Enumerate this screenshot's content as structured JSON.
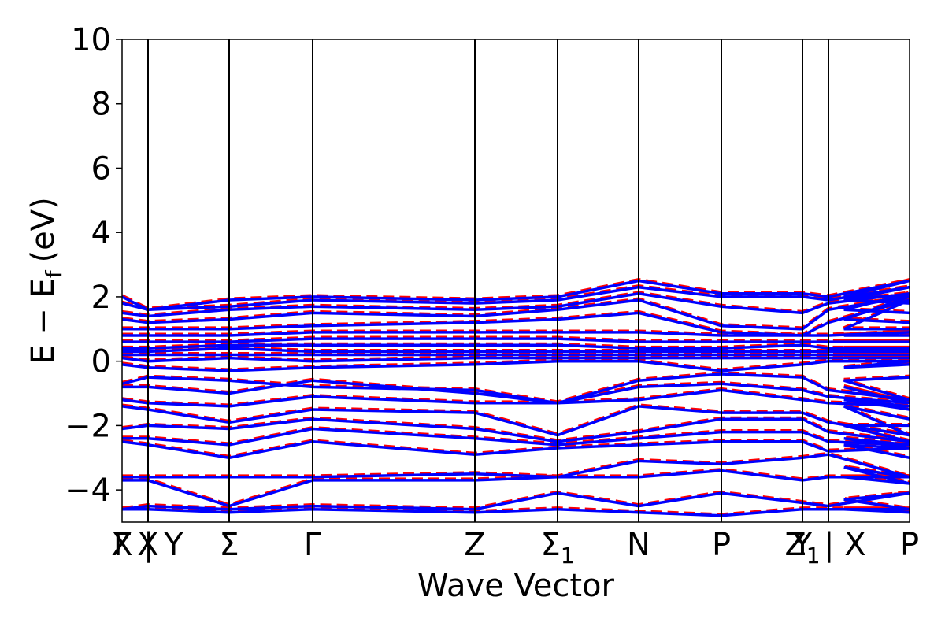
{
  "chart_data": {
    "type": "line",
    "xlabel": "Wave Vector",
    "ylabel": "E − E",
    "ylabel_sub": "f",
    "ylabel_unit": "(eV)",
    "ylim": [
      -5,
      10
    ],
    "yticks": [
      -4,
      -2,
      0,
      2,
      4,
      6,
      8,
      10
    ],
    "yticklabels": [
      "−4",
      "−2",
      "0",
      "2",
      "4",
      "6",
      "8",
      "10"
    ],
    "xlim": [
      0,
      1
    ],
    "grid": false,
    "legend": "none",
    "colors": {
      "series_a": "#ff0000",
      "series_b": "#0000ff",
      "axes": "#000000"
    },
    "series": [
      {
        "style": "dashed",
        "color": "#ff0000"
      },
      {
        "style": "solid",
        "color": "#0000ff"
      }
    ],
    "kpoints": [
      {
        "x": 0.0,
        "label": "Γ",
        "sub": ""
      },
      {
        "x": 0.0,
        "label": "X",
        "sub": ""
      },
      {
        "x": 0.033,
        "label": "X",
        "sub": ""
      },
      {
        "x": 0.033,
        "label": "| Y",
        "sub": ""
      },
      {
        "x": 0.136,
        "label": "Σ",
        "sub": ""
      },
      {
        "x": 0.242,
        "label": "Γ",
        "sub": ""
      },
      {
        "x": 0.448,
        "label": "Z",
        "sub": ""
      },
      {
        "x": 0.553,
        "label": "Σ",
        "sub": "1"
      },
      {
        "x": 0.656,
        "label": "N",
        "sub": ""
      },
      {
        "x": 0.761,
        "label": "P",
        "sub": ""
      },
      {
        "x": 0.864,
        "label": "Y",
        "sub": ""
      },
      {
        "x": 0.864,
        "label": "Z",
        "sub": "1"
      },
      {
        "x": 0.897,
        "label": "| X",
        "sub": ""
      },
      {
        "x": 1.0,
        "label": "P",
        "sub": ""
      }
    ],
    "vlines": [
      0.033,
      0.136,
      0.242,
      0.448,
      0.553,
      0.656,
      0.761,
      0.864,
      0.897
    ],
    "bands": [
      {
        "y": [
          2.0,
          1.6,
          1.9,
          2.0,
          1.9,
          2.0,
          2.5,
          2.1,
          2.1,
          2.0,
          2.5,
          2.0,
          2.0
        ]
      },
      {
        "y": [
          1.8,
          1.6,
          1.7,
          1.9,
          1.8,
          1.9,
          2.3,
          2.0,
          2.0,
          1.9,
          2.3,
          1.9,
          1.8
        ]
      },
      {
        "y": [
          1.5,
          1.4,
          1.6,
          1.7,
          1.6,
          1.7,
          2.1,
          1.7,
          1.5,
          1.8,
          2.1,
          1.6,
          1.5
        ]
      },
      {
        "y": [
          1.3,
          1.2,
          1.3,
          1.5,
          1.4,
          1.6,
          1.9,
          1.1,
          1.0,
          1.6,
          2.0,
          1.3,
          1.2
        ]
      },
      {
        "y": [
          1.0,
          1.0,
          1.0,
          1.1,
          1.2,
          1.3,
          1.5,
          0.9,
          0.8,
          1.2,
          1.9,
          1.0,
          1.0
        ]
      },
      {
        "y": [
          0.8,
          0.8,
          0.8,
          0.9,
          0.9,
          0.9,
          0.9,
          0.8,
          0.8,
          0.8,
          0.9,
          0.8,
          0.8
        ]
      },
      {
        "y": [
          0.6,
          0.6,
          0.6,
          0.7,
          0.7,
          0.7,
          0.6,
          0.6,
          0.6,
          0.6,
          0.6,
          0.6,
          0.6
        ]
      },
      {
        "y": [
          0.4,
          0.4,
          0.5,
          0.5,
          0.5,
          0.5,
          0.4,
          0.4,
          0.5,
          0.4,
          0.4,
          0.4,
          0.4
        ]
      },
      {
        "y": [
          0.3,
          0.3,
          0.4,
          0.3,
          0.3,
          0.3,
          0.3,
          0.3,
          0.3,
          0.3,
          0.3,
          0.3,
          0.3
        ]
      },
      {
        "y": [
          0.2,
          0.2,
          0.2,
          0.2,
          0.2,
          0.2,
          0.2,
          0.2,
          0.2,
          0.2,
          0.2,
          0.2,
          0.2
        ]
      },
      {
        "y": [
          0.1,
          0.0,
          0.1,
          0.0,
          0.1,
          0.1,
          0.1,
          0.1,
          0.1,
          0.1,
          0.1,
          0.1,
          0.1
        ]
      },
      {
        "y": [
          -0.1,
          -0.2,
          -0.3,
          -0.2,
          -0.1,
          0.0,
          0.0,
          -0.3,
          -0.1,
          0.0,
          0.0,
          -0.2,
          -0.1
        ]
      },
      {
        "y": [
          -0.7,
          -0.5,
          -0.6,
          -0.8,
          -0.9,
          -1.3,
          -0.6,
          -0.4,
          -0.5,
          -0.9,
          -1.2,
          -0.6,
          -0.5
        ]
      },
      {
        "y": [
          -0.8,
          -0.8,
          -1.0,
          -0.6,
          -1.0,
          -1.3,
          -0.8,
          -0.7,
          -0.9,
          -1.1,
          -1.3,
          -0.8,
          -1.3
        ]
      },
      {
        "y": [
          -1.2,
          -1.3,
          -1.4,
          -1.1,
          -1.3,
          -1.3,
          -1.2,
          -0.9,
          -1.2,
          -1.3,
          -1.4,
          -1.2,
          -1.5
        ]
      },
      {
        "y": [
          -1.4,
          -1.5,
          -1.9,
          -1.5,
          -1.6,
          -2.3,
          -1.4,
          -1.6,
          -1.6,
          -1.9,
          -2.3,
          -1.4,
          -1.8
        ]
      },
      {
        "y": [
          -2.1,
          -2.0,
          -2.1,
          -1.8,
          -2.1,
          -2.5,
          -2.2,
          -1.8,
          -1.8,
          -2.2,
          -2.5,
          -2.0,
          -2.0
        ]
      },
      {
        "y": [
          -2.4,
          -2.4,
          -2.6,
          -2.1,
          -2.4,
          -2.6,
          -2.4,
          -2.2,
          -2.2,
          -2.5,
          -2.6,
          -2.4,
          -2.7
        ]
      },
      {
        "y": [
          -2.5,
          -2.6,
          -3.0,
          -2.5,
          -2.9,
          -2.7,
          -2.6,
          -2.5,
          -2.5,
          -2.8,
          -2.7,
          -2.6,
          -3.0
        ]
      },
      {
        "y": [
          -3.6,
          -3.6,
          -3.6,
          -3.6,
          -3.5,
          -3.6,
          -3.1,
          -3.2,
          -3.0,
          -2.9,
          -3.6,
          -3.3,
          -3.8
        ]
      },
      {
        "y": [
          -3.7,
          -3.7,
          -4.5,
          -3.7,
          -3.7,
          -3.6,
          -3.6,
          -3.4,
          -3.7,
          -3.6,
          -3.6,
          -3.6,
          -3.8
        ]
      },
      {
        "y": [
          -4.6,
          -4.5,
          -4.6,
          -4.5,
          -4.6,
          -4.1,
          -4.5,
          -4.1,
          -4.4,
          -4.5,
          -4.1,
          -4.3,
          -4.6
        ]
      },
      {
        "y": [
          -4.6,
          -4.6,
          -4.7,
          -4.6,
          -4.7,
          -4.6,
          -4.7,
          -4.8,
          -4.6,
          -4.6,
          -4.6,
          -4.6,
          -4.7
        ]
      }
    ]
  }
}
